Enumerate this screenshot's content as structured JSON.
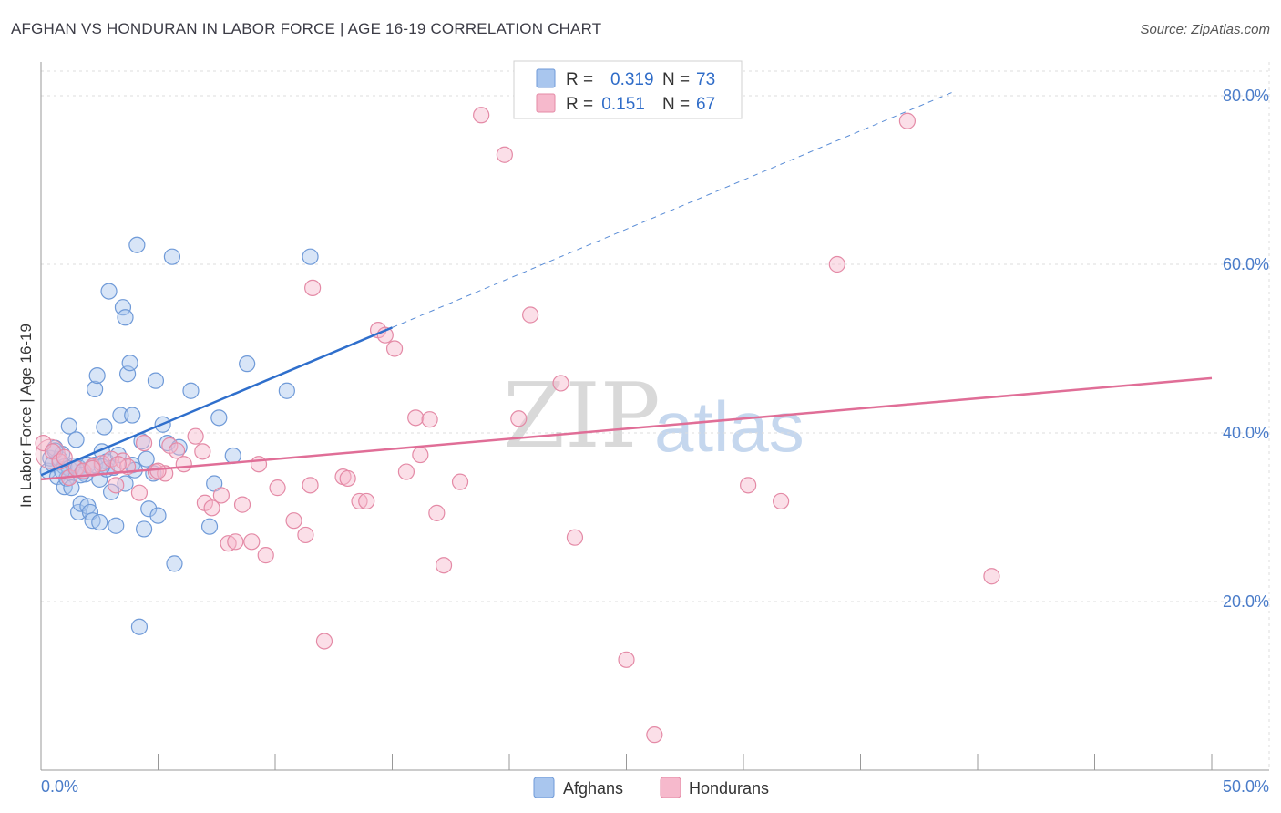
{
  "title": "AFGHAN VS HONDURAN IN LABOR FORCE | AGE 16-19 CORRELATION CHART",
  "source": "Source: ZipAtlas.com",
  "watermark": {
    "zip": "ZIP",
    "atlas": "atlas"
  },
  "colors": {
    "afghan_fill": "#a9c6ee",
    "afghan_stroke": "#6f9ad8",
    "afghan_line": "#2f6fcc",
    "honduran_fill": "#f6b9cc",
    "honduran_stroke": "#e48aa6",
    "honduran_line": "#e06e97",
    "grid": "#dddddd",
    "accent_text": "#4a7cc9"
  },
  "legend": {
    "rows": [
      {
        "r_label": "R = ",
        "r_value": "0.319",
        "n_label": "N = ",
        "n_value": "73",
        "series": "afghan"
      },
      {
        "r_label": "R = ",
        "r_value": " 0.151",
        "n_label": "N = ",
        "n_value": "67",
        "series": "honduran"
      }
    ]
  },
  "bottom_legend": [
    "Afghans",
    "Hondurans"
  ],
  "chart_data": {
    "type": "scatter",
    "title": "AFGHAN VS HONDURAN IN LABOR FORCE | AGE 16-19 CORRELATION CHART",
    "xlabel": "",
    "ylabel": "In Labor Force | Age 16-19",
    "xlim": [
      0,
      50
    ],
    "ylim": [
      0,
      84
    ],
    "x_tick_labels": [
      "0.0%",
      "50.0%"
    ],
    "y_ticks": [
      20,
      40,
      60,
      80
    ],
    "y_tick_labels": [
      "20.0%",
      "40.0%",
      "60.0%",
      "80.0%"
    ],
    "grid": true,
    "series": [
      {
        "name": "Afghans",
        "R": 0.319,
        "N": 73,
        "trend": {
          "x0": 0,
          "y0": 35.0,
          "x1": 15,
          "y1": 52.5,
          "dashed_to_x": 39,
          "dashed_to_y": 80.5
        },
        "points": [
          [
            0.3,
            35.5
          ],
          [
            0.4,
            37.0
          ],
          [
            0.5,
            36.3
          ],
          [
            0.6,
            38.2
          ],
          [
            0.7,
            34.8
          ],
          [
            0.8,
            36.9
          ],
          [
            0.9,
            37.5
          ],
          [
            1.0,
            36.0
          ],
          [
            1.0,
            33.6
          ],
          [
            1.1,
            34.6
          ],
          [
            1.2,
            35.8
          ],
          [
            1.2,
            40.8
          ],
          [
            1.3,
            33.5
          ],
          [
            1.4,
            36.1
          ],
          [
            1.5,
            39.2
          ],
          [
            1.6,
            35.9
          ],
          [
            1.6,
            30.6
          ],
          [
            1.7,
            31.6
          ],
          [
            1.8,
            35.4
          ],
          [
            1.9,
            35.1
          ],
          [
            2.0,
            36.2
          ],
          [
            2.0,
            31.3
          ],
          [
            2.1,
            30.6
          ],
          [
            2.2,
            29.6
          ],
          [
            2.3,
            36.2
          ],
          [
            2.3,
            45.2
          ],
          [
            2.4,
            46.8
          ],
          [
            2.5,
            29.4
          ],
          [
            2.5,
            34.5
          ],
          [
            2.6,
            37.8
          ],
          [
            2.7,
            40.7
          ],
          [
            2.8,
            36.6
          ],
          [
            2.8,
            35.7
          ],
          [
            2.9,
            56.8
          ],
          [
            3.0,
            33.0
          ],
          [
            3.1,
            35.9
          ],
          [
            3.2,
            29.0
          ],
          [
            3.3,
            37.4
          ],
          [
            3.4,
            42.1
          ],
          [
            3.5,
            54.9
          ],
          [
            3.6,
            34.0
          ],
          [
            3.6,
            53.7
          ],
          [
            3.7,
            47.0
          ],
          [
            3.8,
            48.3
          ],
          [
            3.9,
            42.1
          ],
          [
            3.9,
            36.2
          ],
          [
            4.0,
            35.6
          ],
          [
            4.1,
            62.3
          ],
          [
            4.2,
            17.0
          ],
          [
            4.3,
            39.0
          ],
          [
            4.4,
            28.6
          ],
          [
            4.5,
            36.9
          ],
          [
            4.6,
            31.0
          ],
          [
            4.8,
            35.2
          ],
          [
            4.9,
            46.2
          ],
          [
            5.0,
            30.2
          ],
          [
            5.2,
            41.0
          ],
          [
            5.4,
            38.8
          ],
          [
            5.6,
            60.9
          ],
          [
            5.7,
            24.5
          ],
          [
            5.9,
            38.3
          ],
          [
            6.4,
            45.0
          ],
          [
            7.2,
            28.9
          ],
          [
            7.4,
            34.0
          ],
          [
            7.6,
            41.8
          ],
          [
            8.2,
            37.3
          ],
          [
            8.8,
            48.2
          ],
          [
            10.5,
            45.0
          ],
          [
            11.5,
            60.9
          ],
          [
            0.6,
            37.9
          ],
          [
            1.7,
            35.0
          ],
          [
            2.6,
            36.0
          ],
          [
            0.9,
            35.5
          ]
        ]
      },
      {
        "name": "Hondurans",
        "R": 0.151,
        "N": 67,
        "trend": {
          "x0": 0,
          "y0": 34.5,
          "x1": 50,
          "y1": 46.5
        },
        "points": [
          [
            0.1,
            38.8
          ],
          [
            0.5,
            37.8
          ],
          [
            0.8,
            36.6
          ],
          [
            1.0,
            37.1
          ],
          [
            1.2,
            34.7
          ],
          [
            1.5,
            35.8
          ],
          [
            1.8,
            35.5
          ],
          [
            2.2,
            36.0
          ],
          [
            2.6,
            36.4
          ],
          [
            3.0,
            36.9
          ],
          [
            3.2,
            33.8
          ],
          [
            3.5,
            36.7
          ],
          [
            3.7,
            36.0
          ],
          [
            4.2,
            32.9
          ],
          [
            4.4,
            38.8
          ],
          [
            4.9,
            35.4
          ],
          [
            5.3,
            35.2
          ],
          [
            5.5,
            38.5
          ],
          [
            5.8,
            37.9
          ],
          [
            6.1,
            36.3
          ],
          [
            6.6,
            39.6
          ],
          [
            6.9,
            37.8
          ],
          [
            7.0,
            31.7
          ],
          [
            7.3,
            31.1
          ],
          [
            7.7,
            32.6
          ],
          [
            8.0,
            26.9
          ],
          [
            8.3,
            27.1
          ],
          [
            8.6,
            31.5
          ],
          [
            9.0,
            27.1
          ],
          [
            9.3,
            36.3
          ],
          [
            9.6,
            25.5
          ],
          [
            10.1,
            33.5
          ],
          [
            10.8,
            29.6
          ],
          [
            11.3,
            27.9
          ],
          [
            11.5,
            33.8
          ],
          [
            11.6,
            57.2
          ],
          [
            12.1,
            15.3
          ],
          [
            12.9,
            34.8
          ],
          [
            13.1,
            34.6
          ],
          [
            13.6,
            31.9
          ],
          [
            13.9,
            31.9
          ],
          [
            14.4,
            52.2
          ],
          [
            14.7,
            51.6
          ],
          [
            15.1,
            50.0
          ],
          [
            15.6,
            35.4
          ],
          [
            16.0,
            41.8
          ],
          [
            16.2,
            37.4
          ],
          [
            16.6,
            41.6
          ],
          [
            16.9,
            30.5
          ],
          [
            17.2,
            24.3
          ],
          [
            17.9,
            34.2
          ],
          [
            18.8,
            77.7
          ],
          [
            19.8,
            73.0
          ],
          [
            20.4,
            41.7
          ],
          [
            20.9,
            54.0
          ],
          [
            22.2,
            45.9
          ],
          [
            22.8,
            27.6
          ],
          [
            25.0,
            13.1
          ],
          [
            26.2,
            4.2
          ],
          [
            30.2,
            33.8
          ],
          [
            31.6,
            31.9
          ],
          [
            34.0,
            60.0
          ],
          [
            37.0,
            77.0
          ],
          [
            40.6,
            23.0
          ],
          [
            5.0,
            35.5
          ],
          [
            3.3,
            36.3
          ],
          [
            2.2,
            35.8
          ]
        ]
      }
    ]
  }
}
